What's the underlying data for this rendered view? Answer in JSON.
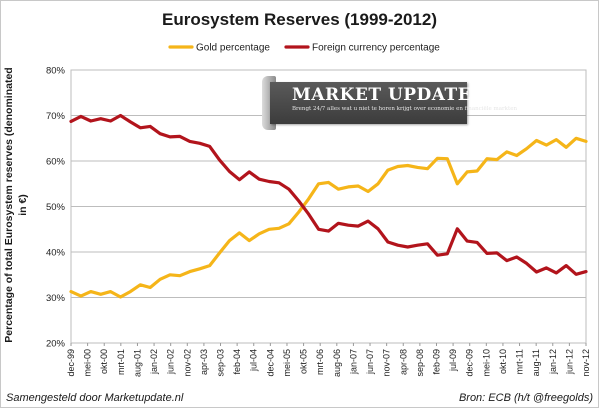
{
  "chart_data": {
    "type": "line",
    "title": "Eurosystem Reserves (1999-2012)",
    "ylabel": "Percentage of total Eurosystem reserves (denominated in €)",
    "xlabel": "",
    "ylim": [
      20,
      80
    ],
    "yticks": [
      "20%",
      "30%",
      "40%",
      "50%",
      "60%",
      "70%",
      "80%"
    ],
    "grid": true,
    "legend_position": "top",
    "categories": [
      "dec-99",
      "mrt-00",
      "jun-00",
      "sep-00",
      "dec-00",
      "mrt-01",
      "jun-01",
      "sep-01",
      "dec-01",
      "mrt-02",
      "jun-02",
      "sep-02",
      "dec-02",
      "mrt-03",
      "jun-03",
      "sep-03",
      "dec-03",
      "mrt-04",
      "jun-04",
      "sep-04",
      "dec-04",
      "mrt-05",
      "jun-05",
      "sep-05",
      "dec-05",
      "mrt-06",
      "jun-06",
      "sep-06",
      "dec-06",
      "mrt-07",
      "jun-07",
      "sep-07",
      "dec-07",
      "mrt-08",
      "jun-08",
      "sep-08",
      "dec-08",
      "mrt-09",
      "jun-09",
      "sep-09",
      "dec-09",
      "mrt-10",
      "jun-10",
      "sep-10",
      "dec-10",
      "mrt-11",
      "jun-11",
      "sep-11",
      "dec-11",
      "mrt-12",
      "jun-12",
      "sep-12",
      "dec-12"
    ],
    "x_tick_labels": [
      "dec-99",
      "mei-00",
      "okt-00",
      "mrt-01",
      "aug-01",
      "jan-02",
      "jun-02",
      "nov-02",
      "apr-03",
      "sep-03",
      "feb-04",
      "jul-04",
      "dec-04",
      "mei-05",
      "okt-05",
      "mrt-06",
      "aug-06",
      "jan-07",
      "jun-07",
      "nov-07",
      "apr-08",
      "sep-08",
      "feb-09",
      "jul-09",
      "dec-09",
      "mei-10",
      "okt-10",
      "mrt-11",
      "aug-11",
      "jan-12",
      "jun-12",
      "nov-12"
    ],
    "series": [
      {
        "name": "Gold percentage",
        "color": "#f5b519",
        "values": [
          31.3,
          30.3,
          31.3,
          30.7,
          31.3,
          30.1,
          31.3,
          32.8,
          32.2,
          34.0,
          35.0,
          34.8,
          35.7,
          36.3,
          37.0,
          39.8,
          42.5,
          44.2,
          42.5,
          44.0,
          45.0,
          45.2,
          46.2,
          48.8,
          51.7,
          55.0,
          55.3,
          53.8,
          54.3,
          54.5,
          53.3,
          55.0,
          58.0,
          58.8,
          59.0,
          58.6,
          58.3,
          60.6,
          60.5,
          55.0,
          57.6,
          57.8,
          60.5,
          60.3,
          62.0,
          61.2,
          62.7,
          64.5,
          63.5,
          64.7,
          63.0,
          65.0,
          64.3
        ]
      },
      {
        "name": "Foreign currency percentage",
        "color": "#b2141c",
        "values": [
          68.7,
          69.8,
          68.8,
          69.3,
          68.8,
          70.0,
          68.6,
          67.3,
          67.6,
          66.0,
          65.3,
          65.4,
          64.3,
          63.9,
          63.2,
          60.2,
          57.7,
          55.9,
          57.6,
          56.0,
          55.5,
          55.2,
          53.8,
          51.2,
          48.3,
          45.0,
          44.6,
          46.3,
          45.9,
          45.7,
          46.8,
          45.1,
          42.2,
          41.5,
          41.1,
          41.5,
          41.8,
          39.3,
          39.6,
          45.1,
          42.4,
          42.1,
          39.7,
          39.8,
          38.1,
          38.9,
          37.5,
          35.6,
          36.5,
          35.4,
          37.0,
          35.1,
          35.7
        ]
      }
    ]
  },
  "watermark": {
    "title": "MARKET UPDATE",
    "subtitle": "Brengt 24/7 alles wat u niet te horen krijgt over economie en financiële markten"
  },
  "footer": {
    "left": "Samengesteld door Marketupdate.nl",
    "right": "Bron: ECB (h/t @freegolds)"
  }
}
